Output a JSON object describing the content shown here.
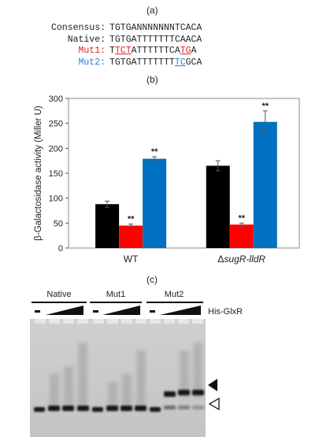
{
  "panel_a": {
    "label": "(a)",
    "rows": [
      {
        "name": "Consensus:",
        "segments": [
          {
            "t": "TGTGANNNNNNNTCACA",
            "m": ""
          }
        ],
        "color": ""
      },
      {
        "name": "Native:",
        "segments": [
          {
            "t": "TGTGATTTTTTTCAACA",
            "m": ""
          }
        ],
        "color": ""
      },
      {
        "name": "Mut1:",
        "segments": [
          {
            "t": "T",
            "m": ""
          },
          {
            "t": "TCT",
            "m": "red"
          },
          {
            "t": "ATTTTTTCA",
            "m": ""
          },
          {
            "t": "TG",
            "m": "red"
          },
          {
            "t": "A",
            "m": ""
          }
        ],
        "color": "red"
      },
      {
        "name": "Mut2:",
        "segments": [
          {
            "t": "TGTGATTTTTTT",
            "m": ""
          },
          {
            "t": "TC",
            "m": "blue"
          },
          {
            "t": "GCA",
            "m": ""
          }
        ],
        "color": "blue"
      }
    ]
  },
  "panel_b": {
    "label": "(b)"
  },
  "chart_data": {
    "type": "bar",
    "categories": [
      "WT",
      "ΔsugR-lldR"
    ],
    "series": [
      {
        "values": [
          88,
          165
        ],
        "errors": [
          6,
          10
        ],
        "color": "#000000",
        "sig": [
          "",
          ""
        ]
      },
      {
        "values": [
          45,
          47
        ],
        "errors": [
          3,
          3
        ],
        "color": "#ff0000",
        "sig": [
          "**",
          "**"
        ]
      },
      {
        "values": [
          179,
          253
        ],
        "errors": [
          4,
          22
        ],
        "color": "#0070c0",
        "sig": [
          "**",
          "**"
        ]
      }
    ],
    "ylabel": "β-Galactosidase activity (Miller U)",
    "ylim": [
      0,
      300
    ],
    "yticks": [
      0,
      50,
      100,
      150,
      200,
      250,
      300
    ],
    "grid": false
  },
  "panel_c": {
    "label": "(c)",
    "groups": [
      "Native",
      "Mut1",
      "Mut2"
    ],
    "protein_label": "His-GlxR"
  }
}
